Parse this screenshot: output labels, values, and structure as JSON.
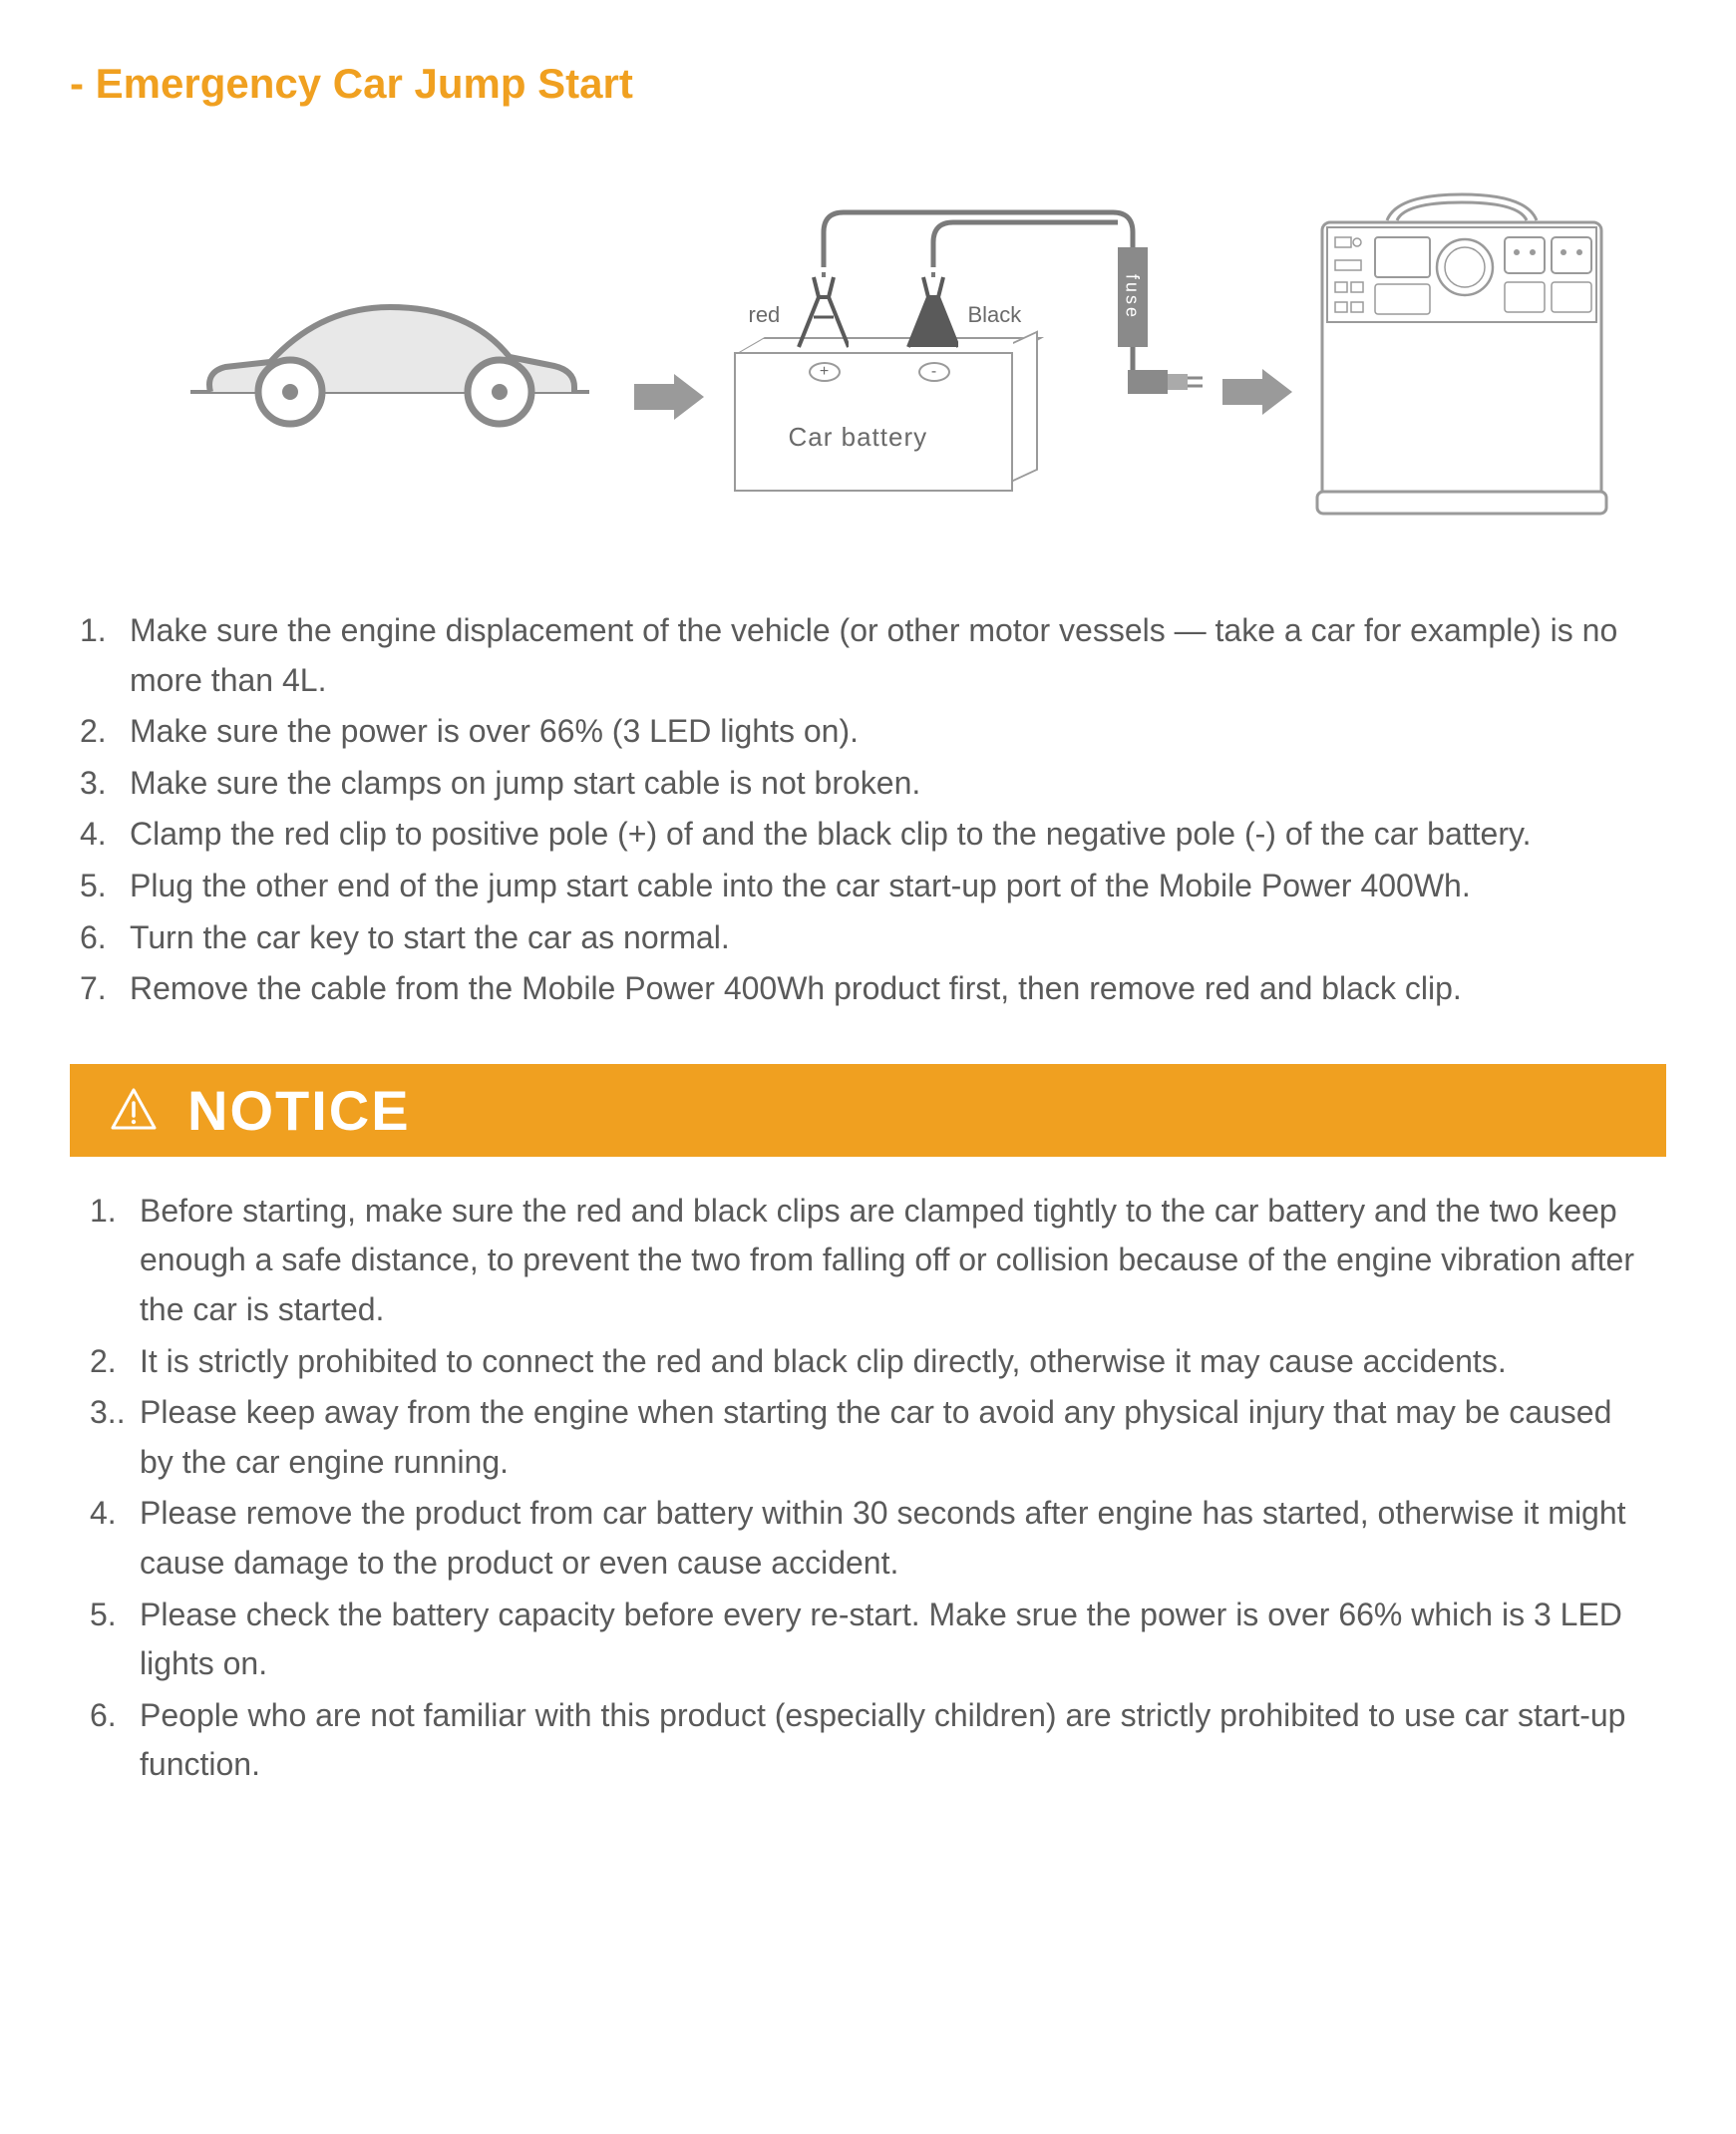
{
  "colors": {
    "accent": "#f0a020",
    "text": "#5a5a5a",
    "line": "#8a8a8a",
    "white": "#ffffff",
    "black": "#5a5a5a"
  },
  "section": {
    "title": "- Emergency Car Jump Start"
  },
  "diagram": {
    "car_battery_label": "Car battery",
    "red_label": "red",
    "black_label": "Black",
    "fuse_label": "fuse",
    "terminal_pos": "+",
    "terminal_neg": "-"
  },
  "instructions": [
    {
      "num": "1.",
      "text": "Make sure the engine displacement of the vehicle (or other motor vessels — take a car for example) is no more than 4L."
    },
    {
      "num": "2.",
      "text": "Make sure the power is over 66% (3 LED lights on)."
    },
    {
      "num": "3.",
      "text": "Make sure the clamps on jump start cable is not broken."
    },
    {
      "num": "4.",
      "text": "Clamp the red clip to positive pole (+) of and the black clip to the negative pole (-) of the car battery."
    },
    {
      "num": "5.",
      "text": "Plug the other end of the jump start cable into the car start-up port of the Mobile Power 400Wh."
    },
    {
      "num": "6.",
      "text": "Turn the car key to start the car as normal."
    },
    {
      "num": "7.",
      "text": "Remove the cable from the Mobile Power 400Wh product first, then remove red and black clip."
    }
  ],
  "notice": {
    "title": "NOTICE",
    "items": [
      {
        "num": "1.",
        "text": "Before starting, make sure the red and black clips are clamped tightly to the car battery and the two keep enough a safe distance, to prevent the two from falling off or collision because of the engine vibration after the car is started."
      },
      {
        "num": "2.",
        "text": "It is strictly prohibited to connect the red and black clip directly, otherwise it may cause accidents."
      },
      {
        "num": "3..",
        "text": "Please keep away from the engine when starting the car to avoid any physical injury that may be caused by the car engine running."
      },
      {
        "num": "4.",
        "text": "Please remove the product from car battery within 30 seconds after engine has started, otherwise it might cause damage to the product or even cause accident."
      },
      {
        "num": "5.",
        "text": "Please check the battery capacity before every re-start. Make srue the power is over 66% which is 3 LED lights on."
      },
      {
        "num": "6.",
        "text": "People who are not familiar with this product (especially children) are strictly prohibited to use car start-up function."
      }
    ]
  }
}
